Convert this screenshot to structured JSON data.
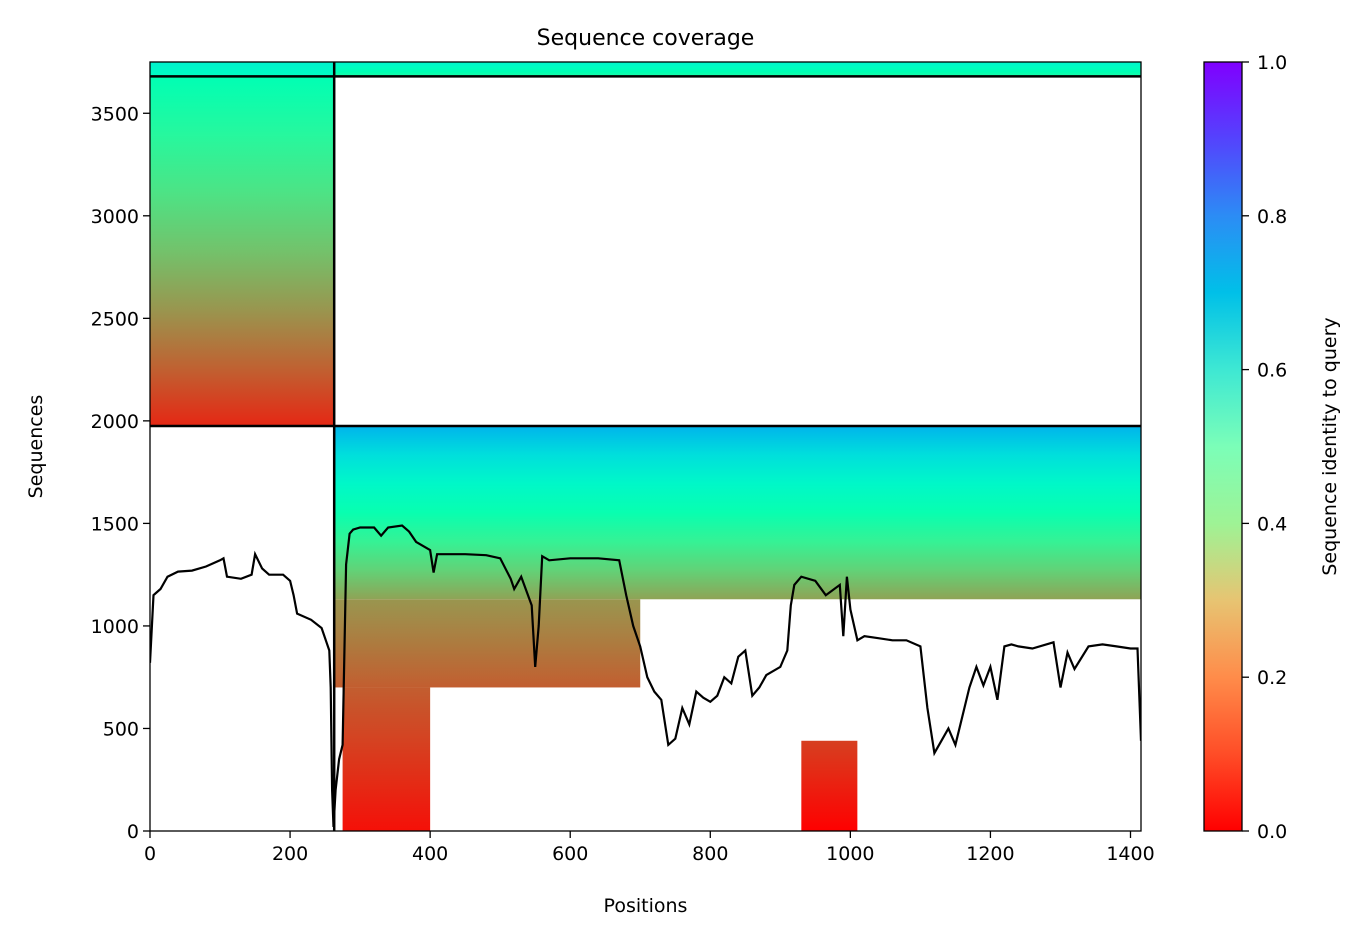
{
  "chart_data": {
    "type": "heatmap",
    "title": "Sequence coverage",
    "xlabel": "Positions",
    "ylabel": "Sequences",
    "xlim": [
      0,
      1415
    ],
    "ylim": [
      0,
      3750
    ],
    "x_ticks": [
      0,
      200,
      400,
      600,
      800,
      1000,
      1200,
      1400
    ],
    "y_ticks": [
      0,
      500,
      1000,
      1500,
      2000,
      2500,
      3000,
      3500
    ],
    "colorbar": {
      "label": "Sequence identity to query",
      "colormap": "rainbow_r",
      "range": [
        0,
        1
      ],
      "ticks": [
        0.0,
        0.2,
        0.4,
        0.6,
        0.8,
        1.0
      ],
      "tick_labels": [
        "0.0",
        "0.2",
        "0.4",
        "0.6",
        "0.8",
        "1.0"
      ]
    },
    "divider_lines": {
      "vertical_x": 263,
      "horizontal_y": [
        1975,
        3680
      ]
    },
    "coverage_blocks": [
      {
        "name": "chain-1-msa",
        "x": [
          0,
          263
        ],
        "y": [
          1975,
          3680
        ],
        "identity_bottom": 0.05,
        "identity_top": 0.5
      },
      {
        "name": "chain-1-pair",
        "x": [
          0,
          263
        ],
        "y": [
          3680,
          3750
        ],
        "identity_bottom": 0.55,
        "identity_top": 0.6
      },
      {
        "name": "chain-2-pair",
        "x": [
          263,
          1415
        ],
        "y": [
          3680,
          3750
        ],
        "identity_bottom": 0.45,
        "identity_top": 0.6
      },
      {
        "name": "chain-2-msa-upper",
        "x": [
          263,
          1415
        ],
        "y": [
          1130,
          1975
        ],
        "identity_bottom": 0.22,
        "identity_top": 0.75
      },
      {
        "name": "chain-2-msa-lower",
        "x": [
          263,
          700
        ],
        "y": [
          700,
          1130
        ],
        "identity_bottom": 0.12,
        "identity_top": 0.2
      },
      {
        "name": "chain-2-msa-tail",
        "x": [
          275,
          400
        ],
        "y": [
          0,
          700
        ],
        "identity_bottom": 0.02,
        "identity_top": 0.12
      },
      {
        "name": "chain-2-msa-island",
        "x": [
          930,
          1010
        ],
        "y": [
          0,
          440
        ],
        "identity_bottom": 0.0,
        "identity_top": 0.08
      }
    ],
    "coverage_line": {
      "x": [
        0,
        5,
        15,
        25,
        40,
        60,
        80,
        100,
        105,
        110,
        130,
        145,
        150,
        160,
        170,
        190,
        200,
        205,
        210,
        230,
        245,
        252,
        256,
        258,
        260,
        262,
        265,
        270,
        275,
        280,
        285,
        290,
        300,
        320,
        330,
        340,
        360,
        370,
        380,
        400,
        405,
        410,
        420,
        450,
        480,
        500,
        515,
        520,
        530,
        545,
        550,
        555,
        560,
        570,
        600,
        640,
        670,
        680,
        690,
        700,
        710,
        720,
        730,
        740,
        750,
        760,
        770,
        780,
        790,
        800,
        810,
        820,
        830,
        840,
        850,
        860,
        870,
        880,
        900,
        910,
        915,
        920,
        930,
        950,
        965,
        985,
        990,
        995,
        1000,
        1010,
        1020,
        1040,
        1060,
        1080,
        1100,
        1110,
        1120,
        1130,
        1140,
        1150,
        1160,
        1170,
        1180,
        1190,
        1200,
        1210,
        1220,
        1230,
        1240,
        1260,
        1290,
        1300,
        1310,
        1320,
        1340,
        1360,
        1380,
        1400,
        1410,
        1415
      ],
      "y": [
        820,
        1150,
        1180,
        1240,
        1265,
        1270,
        1290,
        1320,
        1330,
        1240,
        1230,
        1250,
        1350,
        1280,
        1250,
        1250,
        1220,
        1150,
        1060,
        1030,
        990,
        920,
        880,
        700,
        200,
        20,
        200,
        350,
        420,
        1300,
        1450,
        1470,
        1480,
        1480,
        1440,
        1480,
        1490,
        1460,
        1410,
        1370,
        1260,
        1350,
        1350,
        1350,
        1345,
        1330,
        1230,
        1180,
        1240,
        1100,
        800,
        1000,
        1340,
        1320,
        1330,
        1330,
        1320,
        1150,
        1000,
        900,
        750,
        680,
        640,
        420,
        450,
        600,
        520,
        680,
        650,
        630,
        660,
        750,
        720,
        850,
        880,
        660,
        700,
        760,
        800,
        880,
        1100,
        1200,
        1240,
        1220,
        1150,
        1200,
        950,
        1240,
        1080,
        930,
        950,
        940,
        930,
        930,
        900,
        600,
        380,
        440,
        500,
        420,
        560,
        700,
        800,
        710,
        800,
        640,
        900,
        910,
        900,
        890,
        920,
        700,
        870,
        790,
        900,
        910,
        900,
        890,
        890,
        440
      ]
    }
  }
}
